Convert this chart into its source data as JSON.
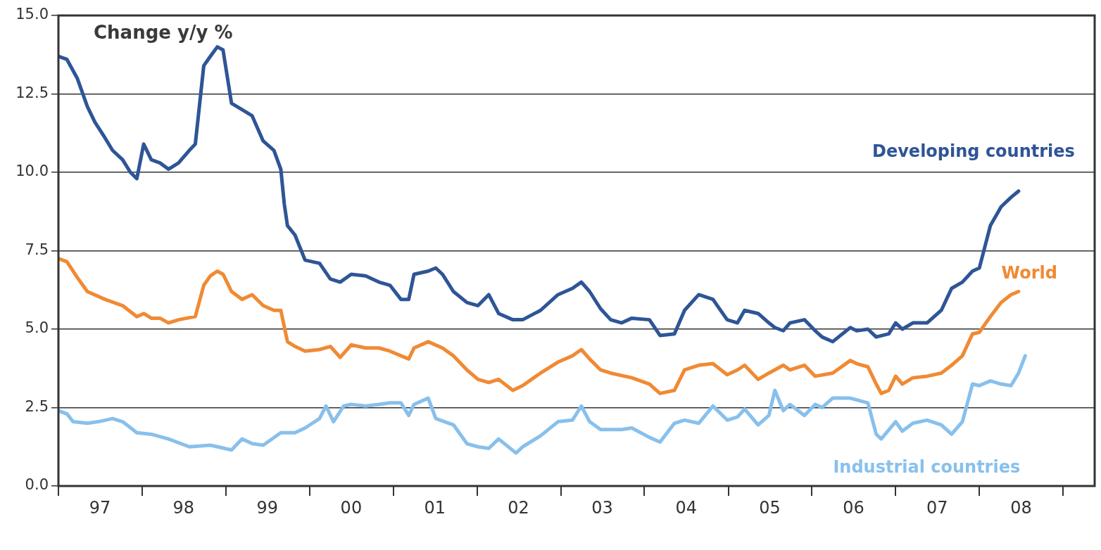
{
  "chart_data": {
    "type": "line",
    "title": "Change y/y %",
    "xlim": [
      "1997-01-01",
      "2009-05-18"
    ],
    "xticks": [
      {
        "value": "1997-01-01",
        "label": null
      },
      {
        "value": "1997-07-01",
        "label": "97"
      },
      {
        "value": "1998-01-01",
        "label": null
      },
      {
        "value": "1998-07-01",
        "label": "98"
      },
      {
        "value": "1999-01-01",
        "label": null
      },
      {
        "value": "1999-07-01",
        "label": "99"
      },
      {
        "value": "2000-01-01",
        "label": null
      },
      {
        "value": "2000-07-01",
        "label": "00"
      },
      {
        "value": "2001-01-01",
        "label": null
      },
      {
        "value": "2001-07-01",
        "label": "01"
      },
      {
        "value": "2002-01-01",
        "label": null
      },
      {
        "value": "2002-07-01",
        "label": "02"
      },
      {
        "value": "2003-01-01",
        "label": null
      },
      {
        "value": "2003-07-01",
        "label": "03"
      },
      {
        "value": "2004-01-01",
        "label": null
      },
      {
        "value": "2004-07-01",
        "label": "04"
      },
      {
        "value": "2005-01-01",
        "label": null
      },
      {
        "value": "2005-07-01",
        "label": "05"
      },
      {
        "value": "2006-01-01",
        "label": null
      },
      {
        "value": "2006-07-01",
        "label": "06"
      },
      {
        "value": "2007-01-01",
        "label": null
      },
      {
        "value": "2007-07-01",
        "label": "07"
      },
      {
        "value": "2008-01-01",
        "label": null
      },
      {
        "value": "2008-07-01",
        "label": "08"
      },
      {
        "value": "2009-01-01",
        "label": null
      }
    ],
    "ylim": [
      0,
      15
    ],
    "yticks": [
      {
        "value": 0,
        "label": "0.0"
      },
      {
        "value": 2.5,
        "label": "2.5"
      },
      {
        "value": 5,
        "label": "5.0"
      },
      {
        "value": 7.5,
        "label": "7.5"
      },
      {
        "value": 10,
        "label": "10.0"
      },
      {
        "value": 12.5,
        "label": "12.5"
      },
      {
        "value": 15,
        "label": "15.0"
      }
    ],
    "grid": "y",
    "marker": "none",
    "line_style": "solid",
    "series": [
      {
        "name": "Developing countries",
        "color": "#2e5596",
        "x": [
          "1997-01-01",
          "1997-02-07",
          "1997-03-24",
          "1997-05-07",
          "1997-06-09",
          "1997-07-23",
          "1997-08-25",
          "1997-10-08",
          "1997-11-11",
          "1997-12-09",
          "1998-01-08",
          "1998-02-10",
          "1998-03-20",
          "1998-04-26",
          "1998-06-09",
          "1998-07-26",
          "1998-08-21",
          "1998-09-27",
          "1998-10-26",
          "1998-11-25",
          "1998-12-20",
          "1999-01-26",
          "1999-03-13",
          "1999-04-26",
          "1999-06-13",
          "1999-07-30",
          "1999-08-29",
          "1999-09-13",
          "1999-09-27",
          "1999-10-30",
          "1999-12-13",
          "2000-02-14",
          "2000-04-01",
          "2000-05-14",
          "2000-07-01",
          "2000-09-02",
          "2000-10-30",
          "2000-12-17",
          "2001-02-03",
          "2001-03-09",
          "2001-04-01",
          "2001-06-02",
          "2001-07-05",
          "2001-08-03",
          "2001-09-20",
          "2001-11-18",
          "2002-01-05",
          "2002-02-21",
          "2002-04-05",
          "2002-06-06",
          "2002-07-19",
          "2002-10-05",
          "2002-12-20",
          "2003-02-21",
          "2003-04-01",
          "2003-05-07",
          "2003-06-24",
          "2003-08-07",
          "2003-09-24",
          "2003-11-07",
          "2004-01-23",
          "2004-03-09",
          "2004-05-11",
          "2004-06-24",
          "2004-08-25",
          "2004-10-26",
          "2004-12-27",
          "2005-02-10",
          "2005-03-13",
          "2005-05-11",
          "2005-06-27",
          "2005-07-23",
          "2005-08-29",
          "2005-09-27",
          "2005-11-29",
          "2006-01-15",
          "2006-02-14",
          "2006-04-01",
          "2006-06-17",
          "2006-07-15",
          "2006-09-02",
          "2006-10-08",
          "2006-12-02",
          "2007-01-01",
          "2007-01-30",
          "2007-03-17",
          "2007-05-18",
          "2007-07-19",
          "2007-09-02",
          "2007-10-19",
          "2007-12-02",
          "2008-01-01",
          "2008-02-18",
          "2008-04-05",
          "2008-05-18",
          "2008-06-20"
        ],
        "values": [
          13.7,
          13.6,
          13.0,
          12.1,
          11.6,
          11.1,
          10.7,
          10.4,
          10.0,
          9.8,
          10.9,
          10.4,
          10.3,
          10.1,
          10.3,
          10.7,
          10.9,
          13.4,
          13.7,
          14.0,
          13.9,
          12.2,
          12.0,
          11.8,
          11.0,
          10.7,
          10.1,
          9.0,
          8.3,
          8.0,
          7.2,
          7.1,
          6.6,
          6.5,
          6.75,
          6.7,
          6.5,
          6.4,
          5.95,
          5.95,
          6.75,
          6.85,
          6.95,
          6.75,
          6.2,
          5.85,
          5.75,
          6.1,
          5.5,
          5.3,
          5.3,
          5.6,
          6.1,
          6.3,
          6.5,
          6.2,
          5.65,
          5.3,
          5.2,
          5.35,
          5.3,
          4.8,
          4.85,
          5.6,
          6.1,
          5.95,
          5.3,
          5.2,
          5.6,
          5.5,
          5.2,
          5.05,
          4.95,
          5.2,
          5.3,
          4.95,
          4.75,
          4.6,
          5.05,
          4.95,
          5.0,
          4.75,
          4.85,
          5.2,
          5.0,
          5.2,
          5.2,
          5.6,
          6.3,
          6.5,
          6.85,
          6.95,
          8.3,
          8.9,
          9.2,
          9.4
        ]
      },
      {
        "name": "World",
        "color": "#f08a33",
        "x": [
          "1997-01-01",
          "1997-02-07",
          "1997-03-24",
          "1997-05-07",
          "1997-07-23",
          "1997-10-08",
          "1997-12-09",
          "1998-01-08",
          "1998-02-10",
          "1998-03-20",
          "1998-04-26",
          "1998-06-09",
          "1998-08-21",
          "1998-09-27",
          "1998-10-26",
          "1998-11-25",
          "1998-12-20",
          "1999-01-26",
          "1999-03-13",
          "1999-04-26",
          "1999-06-13",
          "1999-07-30",
          "1999-08-29",
          "1999-09-27",
          "1999-10-30",
          "1999-12-13",
          "2000-02-14",
          "2000-04-01",
          "2000-05-14",
          "2000-07-01",
          "2000-09-02",
          "2000-10-30",
          "2000-12-17",
          "2001-02-03",
          "2001-03-09",
          "2001-04-01",
          "2001-06-02",
          "2001-08-03",
          "2001-09-20",
          "2001-11-18",
          "2002-01-05",
          "2002-02-21",
          "2002-04-05",
          "2002-06-06",
          "2002-07-19",
          "2002-10-05",
          "2002-12-20",
          "2003-02-21",
          "2003-04-01",
          "2003-05-07",
          "2003-06-24",
          "2003-08-07",
          "2003-11-07",
          "2004-01-23",
          "2004-03-09",
          "2004-05-11",
          "2004-06-24",
          "2004-08-25",
          "2004-10-26",
          "2004-12-27",
          "2005-02-10",
          "2005-03-13",
          "2005-05-11",
          "2005-06-27",
          "2005-08-29",
          "2005-09-27",
          "2005-11-29",
          "2006-01-15",
          "2006-04-01",
          "2006-06-17",
          "2006-07-15",
          "2006-09-02",
          "2006-10-08",
          "2006-10-30",
          "2006-12-02",
          "2007-01-01",
          "2007-01-30",
          "2007-03-17",
          "2007-05-18",
          "2007-07-19",
          "2007-09-02",
          "2007-10-19",
          "2007-12-02",
          "2008-01-01",
          "2008-02-18",
          "2008-04-05",
          "2008-05-18",
          "2008-06-20"
        ],
        "values": [
          7.25,
          7.15,
          6.65,
          6.2,
          5.95,
          5.75,
          5.4,
          5.5,
          5.35,
          5.35,
          5.2,
          5.3,
          5.4,
          6.4,
          6.7,
          6.85,
          6.75,
          6.2,
          5.95,
          6.1,
          5.75,
          5.6,
          5.6,
          4.6,
          4.45,
          4.3,
          4.35,
          4.45,
          4.1,
          4.5,
          4.4,
          4.4,
          4.3,
          4.15,
          4.05,
          4.4,
          4.6,
          4.4,
          4.15,
          3.7,
          3.4,
          3.3,
          3.4,
          3.05,
          3.2,
          3.6,
          3.95,
          4.15,
          4.35,
          4.05,
          3.7,
          3.6,
          3.45,
          3.25,
          2.95,
          3.05,
          3.7,
          3.85,
          3.9,
          3.55,
          3.7,
          3.85,
          3.4,
          3.6,
          3.85,
          3.7,
          3.85,
          3.5,
          3.6,
          4.0,
          3.9,
          3.8,
          3.25,
          2.95,
          3.05,
          3.5,
          3.25,
          3.45,
          3.5,
          3.6,
          3.85,
          4.15,
          4.85,
          4.9,
          5.4,
          5.85,
          6.1,
          6.2
        ]
      },
      {
        "name": "Industrial countries",
        "color": "#88c0ec",
        "x": [
          "1997-01-01",
          "1997-02-07",
          "1997-03-06",
          "1997-05-07",
          "1997-06-24",
          "1997-08-25",
          "1997-10-08",
          "1997-12-09",
          "1998-02-10",
          "1998-04-26",
          "1998-07-26",
          "1998-10-26",
          "1999-01-26",
          "1999-03-13",
          "1999-04-26",
          "1999-06-13",
          "1999-08-29",
          "1999-10-30",
          "1999-12-13",
          "2000-02-14",
          "2000-03-13",
          "2000-04-15",
          "2000-05-29",
          "2000-07-01",
          "2000-09-02",
          "2000-10-30",
          "2000-12-17",
          "2001-02-03",
          "2001-03-09",
          "2001-04-01",
          "2001-06-02",
          "2001-07-05",
          "2001-09-20",
          "2001-11-18",
          "2002-01-05",
          "2002-02-21",
          "2002-04-05",
          "2002-06-20",
          "2002-07-19",
          "2002-10-05",
          "2002-12-20",
          "2003-02-21",
          "2003-04-01",
          "2003-05-07",
          "2003-06-24",
          "2003-09-24",
          "2003-11-07",
          "2004-01-23",
          "2004-03-09",
          "2004-05-11",
          "2004-06-24",
          "2004-08-25",
          "2004-10-26",
          "2004-12-27",
          "2005-02-10",
          "2005-03-13",
          "2005-05-11",
          "2005-06-27",
          "2005-07-23",
          "2005-08-29",
          "2005-09-27",
          "2005-11-29",
          "2006-01-15",
          "2006-02-14",
          "2006-04-01",
          "2006-06-17",
          "2006-09-02",
          "2006-10-08",
          "2006-10-30",
          "2007-01-01",
          "2007-01-30",
          "2007-03-17",
          "2007-05-18",
          "2007-07-19",
          "2007-09-02",
          "2007-10-19",
          "2007-12-02",
          "2008-01-01",
          "2008-02-18",
          "2008-04-05",
          "2008-05-18",
          "2008-06-20",
          "2008-07-19"
        ],
        "values": [
          2.4,
          2.3,
          2.05,
          2.0,
          2.05,
          2.15,
          2.05,
          1.7,
          1.65,
          1.5,
          1.25,
          1.3,
          1.15,
          1.5,
          1.35,
          1.3,
          1.7,
          1.7,
          1.85,
          2.15,
          2.55,
          2.05,
          2.55,
          2.6,
          2.55,
          2.6,
          2.65,
          2.65,
          2.25,
          2.6,
          2.8,
          2.15,
          1.95,
          1.35,
          1.25,
          1.2,
          1.5,
          1.05,
          1.25,
          1.6,
          2.05,
          2.1,
          2.55,
          2.05,
          1.8,
          1.8,
          1.85,
          1.55,
          1.4,
          2.0,
          2.1,
          2.0,
          2.55,
          2.1,
          2.2,
          2.45,
          1.95,
          2.25,
          3.05,
          2.4,
          2.6,
          2.25,
          2.6,
          2.5,
          2.8,
          2.8,
          2.65,
          1.65,
          1.5,
          2.05,
          1.75,
          2.0,
          2.1,
          1.95,
          1.65,
          2.05,
          3.25,
          3.2,
          3.35,
          3.25,
          3.2,
          3.6,
          4.15
        ]
      }
    ]
  }
}
